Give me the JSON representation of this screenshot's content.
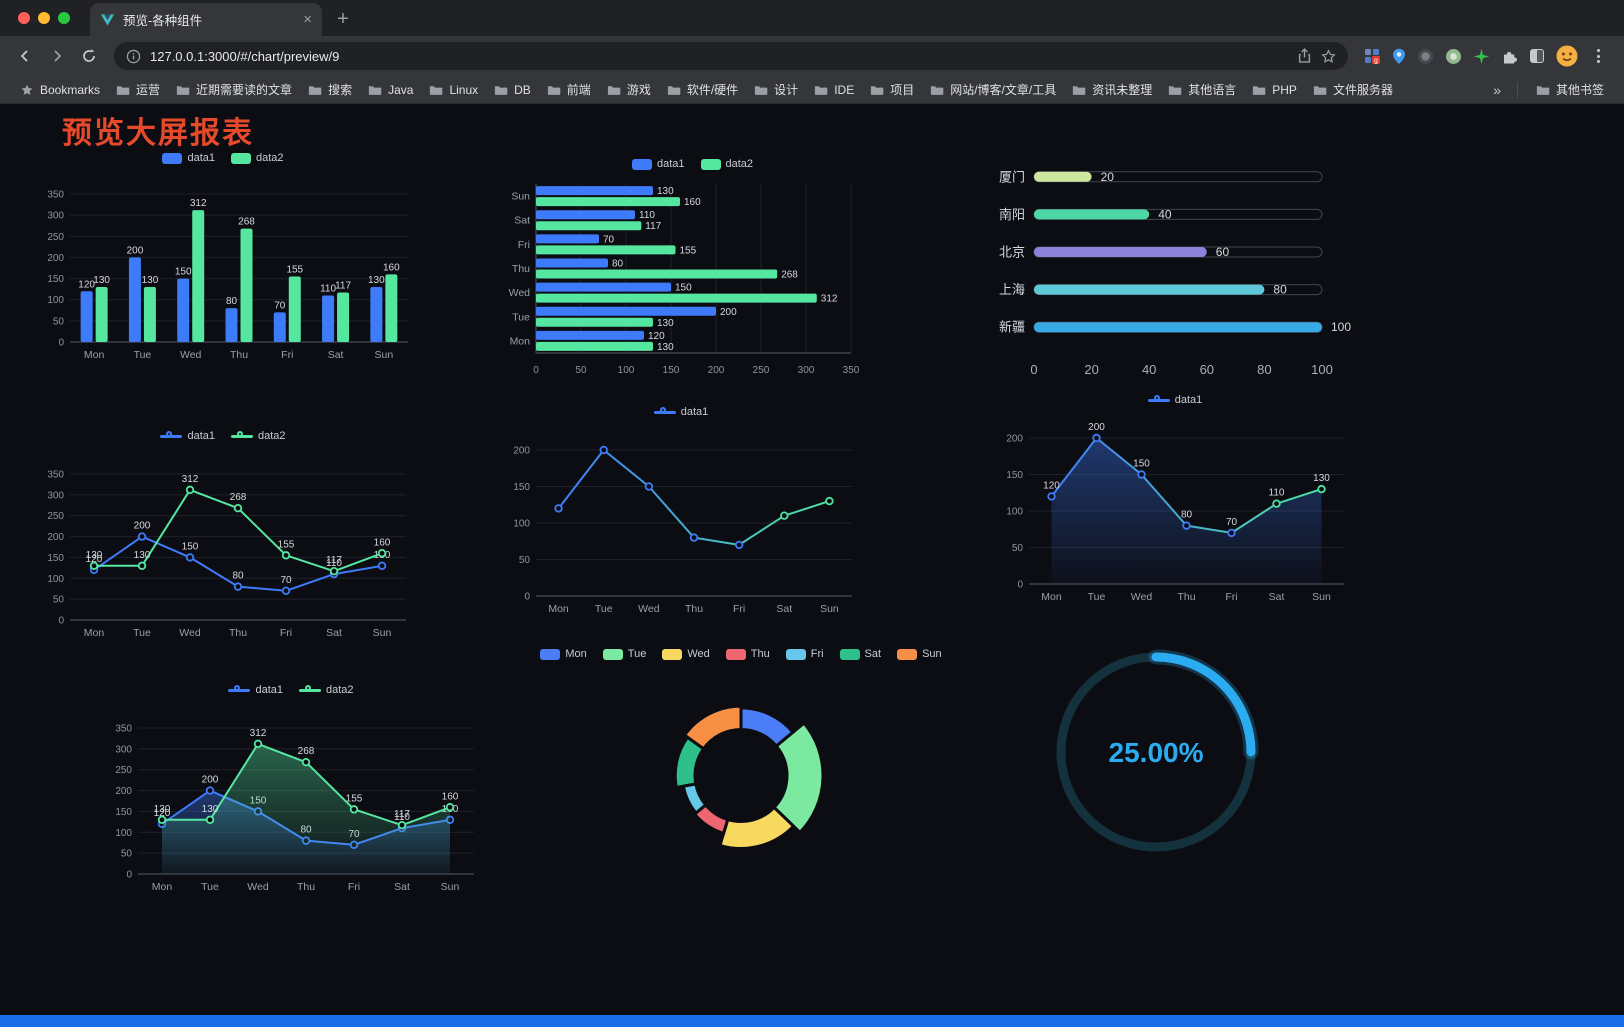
{
  "browser": {
    "tab": {
      "title": "预览-各种组件",
      "close_glyph": "×"
    },
    "new_tab_glyph": "+",
    "url": "127.0.0.1:3000/#/chart/preview/9",
    "bookmarks_bar": {
      "root_label": "Bookmarks",
      "folders": [
        "运营",
        "近期需要读的文章",
        "搜索",
        "Java",
        "Linux",
        "DB",
        "前端",
        "游戏",
        "软件/硬件",
        "设计",
        "IDE",
        "项目",
        "网站/博客/文章/工具",
        "资讯未整理",
        "其他语言",
        "PHP",
        "文件服务器"
      ],
      "overflow_glyph": "»",
      "other_bookmarks": "其他书签"
    }
  },
  "page": {
    "title": "预览大屏报表",
    "title_color": "#e64a2a",
    "footer_color": "#1b6ce8"
  },
  "chart_data": [
    {
      "type": "bar",
      "categories": [
        "Mon",
        "Tue",
        "Wed",
        "Thu",
        "Fri",
        "Sat",
        "Sun"
      ],
      "series": [
        {
          "name": "data1",
          "color": "#3e7bfa",
          "values": [
            120,
            200,
            150,
            80,
            70,
            110,
            130
          ]
        },
        {
          "name": "data2",
          "color": "#55e6a0",
          "values": [
            130,
            130,
            312,
            268,
            155,
            117,
            160
          ]
        }
      ],
      "ylim": [
        0,
        350
      ],
      "ytick_step": 50,
      "value_labels": true,
      "legend_position": "top",
      "grid": true
    },
    {
      "type": "bar-horizontal",
      "categories": [
        "Mon",
        "Tue",
        "Wed",
        "Thu",
        "Fri",
        "Sat",
        "Sun"
      ],
      "series": [
        {
          "name": "data1",
          "color": "#3e7bfa",
          "values": [
            120,
            200,
            150,
            80,
            70,
            110,
            130
          ]
        },
        {
          "name": "data2",
          "color": "#55e6a0",
          "values": [
            130,
            130,
            312,
            268,
            155,
            117,
            160
          ]
        }
      ],
      "xlim": [
        0,
        350
      ],
      "xticks": [
        0,
        50,
        100,
        150,
        200,
        250,
        300,
        350
      ],
      "value_labels": true,
      "legend_position": "top"
    },
    {
      "type": "progress-bars",
      "max": 100,
      "xticks": [
        0,
        20,
        40,
        60,
        80,
        100
      ],
      "items": [
        {
          "label": "厦门",
          "value": 20,
          "color": "#cfe8a0"
        },
        {
          "label": "南阳",
          "value": 40,
          "color": "#4cd7a6"
        },
        {
          "label": "北京",
          "value": 60,
          "color": "#8d82da"
        },
        {
          "label": "上海",
          "value": 80,
          "color": "#5ec8d8"
        },
        {
          "label": "新疆",
          "value": 100,
          "color": "#38a9e4"
        }
      ]
    },
    {
      "type": "line",
      "categories": [
        "Mon",
        "Tue",
        "Wed",
        "Thu",
        "Fri",
        "Sat",
        "Sun"
      ],
      "series": [
        {
          "name": "data1",
          "color": "#3e7bfa",
          "values": [
            120,
            200,
            150,
            80,
            70,
            110,
            130
          ]
        },
        {
          "name": "data2",
          "color": "#55e6a0",
          "values": [
            130,
            130,
            312,
            268,
            155,
            117,
            160
          ]
        }
      ],
      "ylim": [
        0,
        350
      ],
      "ytick_step": 50,
      "value_labels": true,
      "legend_position": "top"
    },
    {
      "type": "line",
      "categories": [
        "Mon",
        "Tue",
        "Wed",
        "Thu",
        "Fri",
        "Sat",
        "Sun"
      ],
      "series": [
        {
          "name": "data1",
          "color": "#3e7bfa",
          "color_end": "#4ee3a1",
          "values": [
            120,
            200,
            150,
            80,
            70,
            110,
            130
          ]
        }
      ],
      "ylim": [
        0,
        200
      ],
      "ytick_step": 50,
      "value_labels": false,
      "legend_position": "top"
    },
    {
      "type": "line",
      "area": true,
      "categories": [
        "Mon",
        "Tue",
        "Wed",
        "Thu",
        "Fri",
        "Sat",
        "Sun"
      ],
      "series": [
        {
          "name": "data1",
          "color": "#3e7bfa",
          "color_end": "#4ee3a1",
          "values": [
            120,
            200,
            150,
            80,
            70,
            110,
            130
          ]
        }
      ],
      "ylim": [
        0,
        200
      ],
      "ytick_step": 50,
      "value_labels": true,
      "legend_position": "top"
    },
    {
      "type": "line",
      "area": true,
      "categories": [
        "Mon",
        "Tue",
        "Wed",
        "Thu",
        "Fri",
        "Sat",
        "Sun"
      ],
      "series": [
        {
          "name": "data1",
          "color": "#3e7bfa",
          "values": [
            120,
            200,
            150,
            80,
            70,
            110,
            130
          ]
        },
        {
          "name": "data2",
          "color": "#55e6a0",
          "values": [
            130,
            130,
            312,
            268,
            155,
            117,
            160
          ]
        }
      ],
      "ylim": [
        0,
        350
      ],
      "ytick_step": 50,
      "value_labels": true,
      "legend_position": "top"
    },
    {
      "type": "pie",
      "rose": true,
      "legend_categories": true,
      "categories": [
        "Mon",
        "Tue",
        "Wed",
        "Thu",
        "Fri",
        "Sat",
        "Sun"
      ],
      "values": [
        120,
        200,
        150,
        80,
        70,
        110,
        130
      ],
      "colors": [
        "#4a7df6",
        "#7ce9a0",
        "#f6d95e",
        "#ee6672",
        "#66c7ea",
        "#2ec08b",
        "#f78f45"
      ],
      "legend_position": "top"
    },
    {
      "type": "gauge",
      "percent": 25,
      "value_label": "25.00%",
      "color": "#2bacf0",
      "track_color": "#14323e"
    }
  ]
}
